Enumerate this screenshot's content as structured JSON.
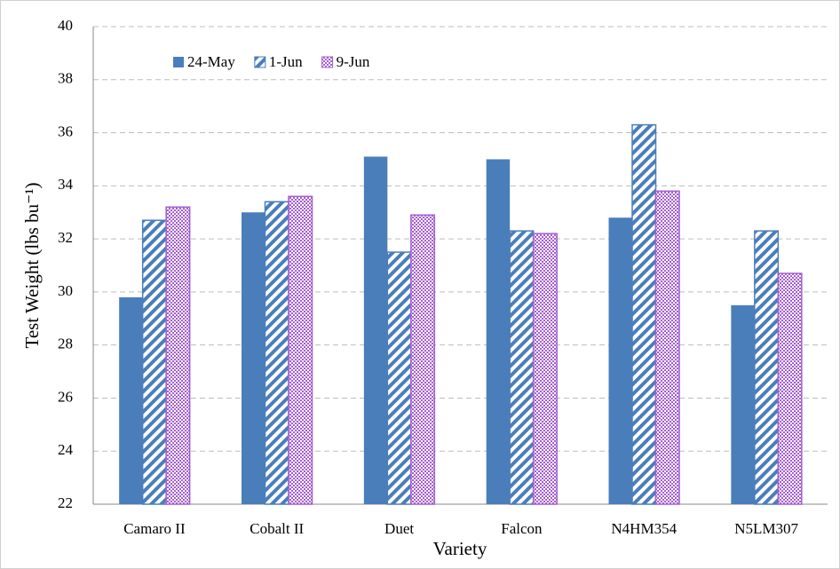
{
  "chart_data": {
    "type": "bar",
    "x_label": "Variety",
    "y_label": "Test Weight (lbs bu⁻¹)",
    "categories": [
      "Camaro II",
      "Cobalt II",
      "Duet",
      "Falcon",
      "N4HM354",
      "N5LM307"
    ],
    "series": [
      {
        "name": "24-May",
        "color": "#4a7ebb",
        "pattern": "solid",
        "values": [
          29.8,
          33.0,
          35.1,
          35.0,
          32.8,
          29.5
        ]
      },
      {
        "name": "1-Jun",
        "color": "#4a7ebb",
        "pattern": "diagonal",
        "values": [
          32.7,
          33.4,
          31.5,
          32.3,
          36.3,
          32.3
        ]
      },
      {
        "name": "9-Jun",
        "color": "#a55fd0",
        "pattern": "checker",
        "values": [
          33.2,
          33.6,
          32.9,
          32.2,
          33.8,
          30.7
        ]
      }
    ],
    "ylim": [
      22,
      40
    ],
    "yticks": [
      22,
      24,
      26,
      28,
      30,
      32,
      34,
      36,
      38,
      40
    ],
    "grid": true,
    "legend": "top-left"
  }
}
